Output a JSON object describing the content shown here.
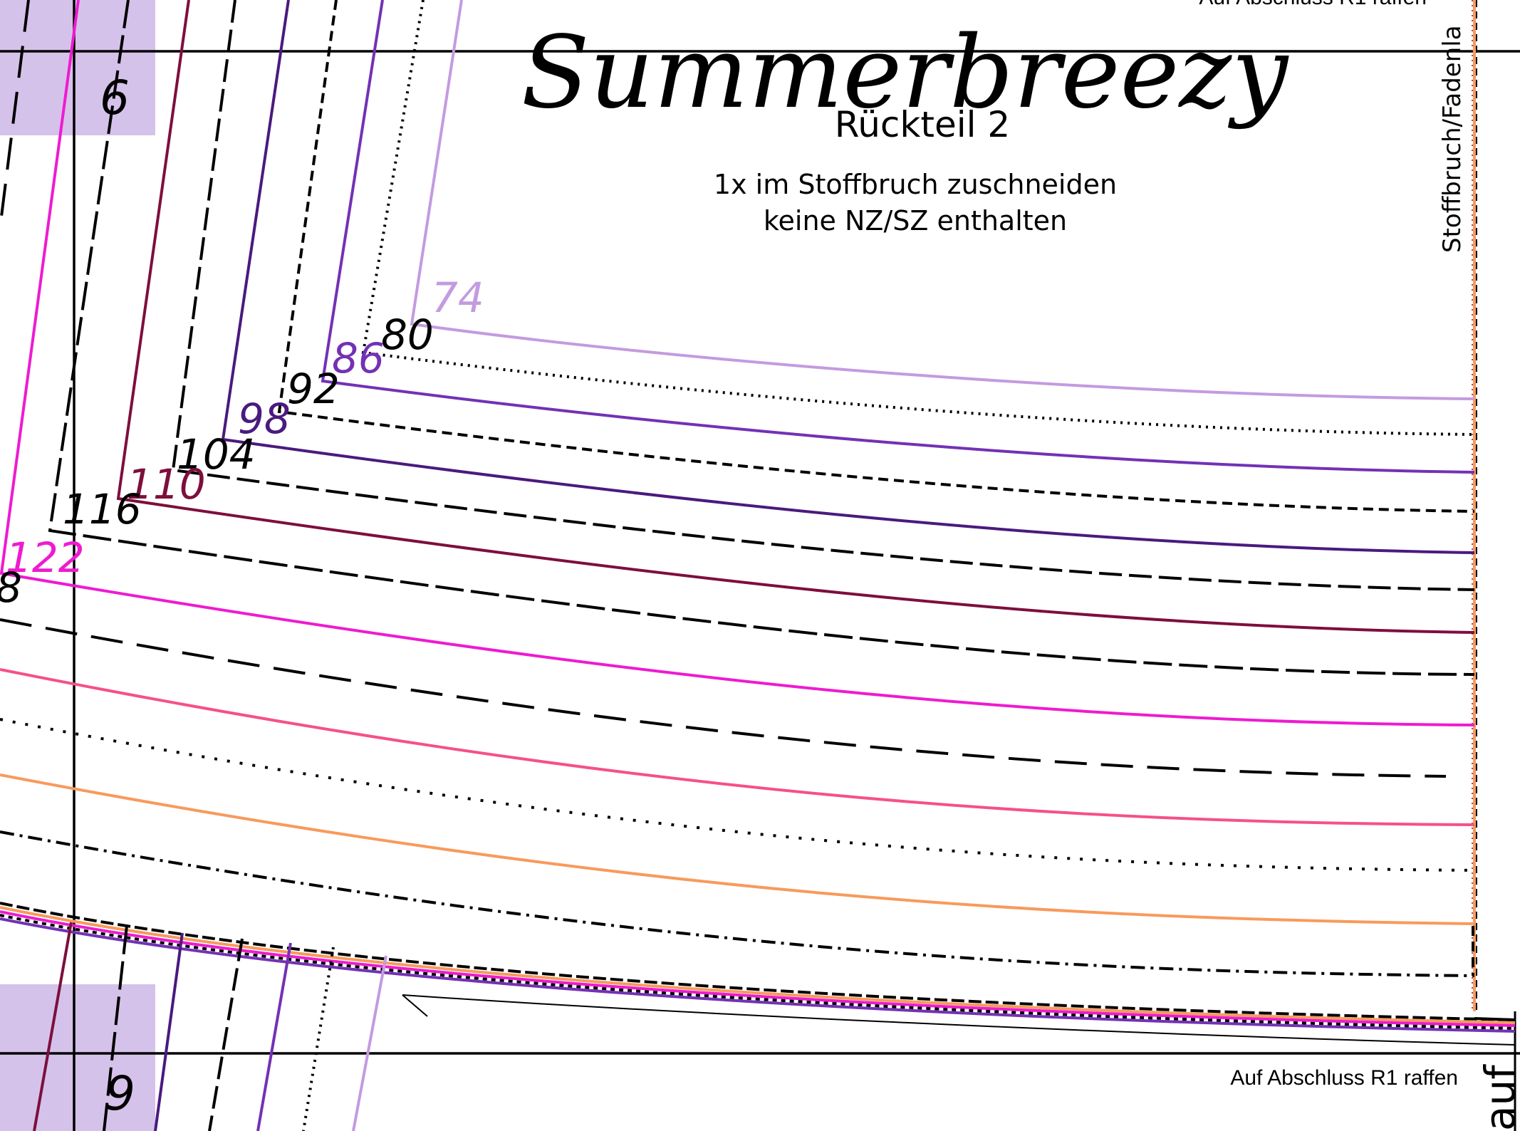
{
  "pattern": {
    "title_script": "Summerbreezy",
    "piece_name": "Rückteil 2",
    "instruction_line1": "1x im Stoffbruch zuschneiden",
    "instruction_line2": "keine NZ/SZ enthalten",
    "fold_label": "Stoffbruch/Fadenla",
    "gather_note_top": "Auf Abschluss R1 raffen",
    "gather_note_bottom": "Auf Abschluss R1 raffen",
    "bottom_right_fragment": "auf",
    "page_numbers": {
      "top": "6",
      "bottom": "9"
    },
    "colors": {
      "grid": "#000000",
      "tile_highlight": "#d5c2ea",
      "s74": "#c39be0",
      "s80": "#000000",
      "s86": "#7331b5",
      "s92": "#000000",
      "s98": "#4a1a7e",
      "s104": "#000000",
      "s110": "#7d0f3c",
      "s116": "#000000",
      "s122": "#ee1bd0",
      "s128": "#000000",
      "pink": "#f5508a",
      "orange": "#f79a5c"
    },
    "sizes": [
      {
        "label": "74",
        "color": "#c39be0",
        "dash": "solid"
      },
      {
        "label": "80",
        "color": "#000000",
        "dash": "dotted"
      },
      {
        "label": "86",
        "color": "#7331b5",
        "dash": "solid"
      },
      {
        "label": "92",
        "color": "#000000",
        "dash": "dashed-short"
      },
      {
        "label": "98",
        "color": "#4a1a7e",
        "dash": "solid"
      },
      {
        "label": "104",
        "color": "#000000",
        "dash": "dashed-long"
      },
      {
        "label": "110",
        "color": "#7d0f3c",
        "dash": "solid"
      },
      {
        "label": "116",
        "color": "#000000",
        "dash": "dashed-long"
      },
      {
        "label": "122",
        "color": "#ee1bd0",
        "dash": "solid"
      },
      {
        "label": "8",
        "color": "#000000",
        "dash": "dashed-xlong"
      }
    ]
  }
}
